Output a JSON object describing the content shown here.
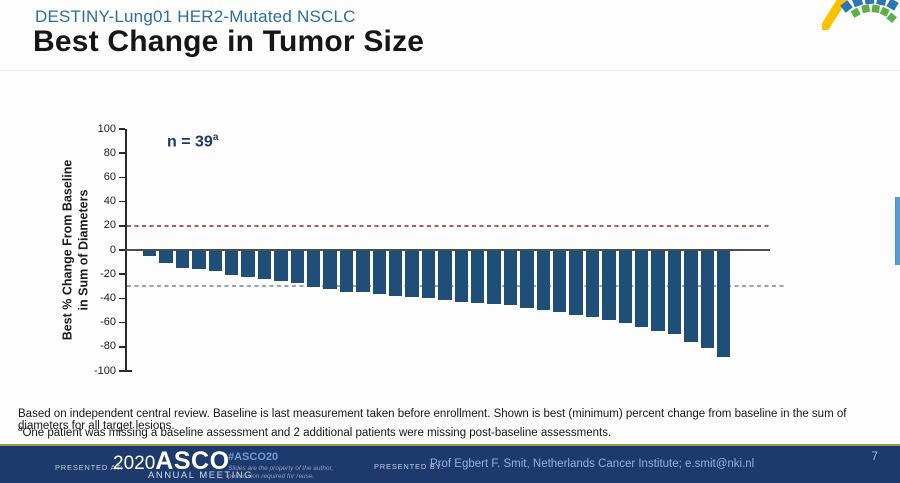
{
  "header": {
    "subtitle": "DESTINY-Lung01 HER2-Mutated NSCLC",
    "title": "Best Change in Tumor Size"
  },
  "chart_data": {
    "type": "bar",
    "title": "Best Change in Tumor Size",
    "annotation": "n = 39",
    "annotation_superscript": "a",
    "ylabel_line1": "Best % Change From Baseline",
    "ylabel_line2": "in Sum of Diameters",
    "ylim": [
      -100,
      100
    ],
    "yticks": [
      100,
      80,
      60,
      40,
      20,
      0,
      -20,
      -40,
      -60,
      -80,
      -100
    ],
    "grid": false,
    "bar_color": "#1f4e79",
    "zero_line_color": "#4d4d4d",
    "reference_lines": [
      {
        "y": 20,
        "color": "#b05c5c",
        "style": "dashed",
        "meaning": "progressive-disease-threshold"
      },
      {
        "y": -30,
        "color": "#8fa8a8",
        "style": "dashed",
        "meaning": "partial-response-threshold"
      }
    ],
    "values": [
      -4,
      -10,
      -14,
      -15,
      -17,
      -20,
      -22,
      -23,
      -25,
      -27,
      -30,
      -32,
      -34,
      -34,
      -36,
      -37,
      -38,
      -39,
      -41,
      -42,
      -43,
      -44,
      -45,
      -47,
      -49,
      -51,
      -53,
      -55,
      -57,
      -60,
      -63,
      -66,
      -69,
      -75,
      -80,
      -88
    ]
  },
  "footnotes": {
    "line1": "Based on independent central review. Baseline is last measurement taken before enrollment. Shown is best (minimum) percent change from baseline in the sum of diameters for all target lesions.",
    "line2_marker": "a",
    "line2": "One patient was missing a baseline assessment and 2 additional patients were missing post-baseline assessments."
  },
  "footer": {
    "presented_at_label": "PRESENTED AT:",
    "logo_year": "2020",
    "logo_name": "ASCO",
    "logo_sub": "ANNUAL MEETING",
    "hashtag": "#ASCO20",
    "disclaimer_line1": "Slides are the property of the author,",
    "disclaimer_line2": "permission required for reuse.",
    "presented_by_label": "PRESENTED BY:",
    "presenter": "Prof Egbert F. Smit, Netherlands Cancer Institute; e.smit@nki.nl",
    "page_number": "7"
  },
  "logo_colors": {
    "yellow": "#ffc000",
    "blue": "#2e75b6",
    "green": "#5fae4a"
  }
}
